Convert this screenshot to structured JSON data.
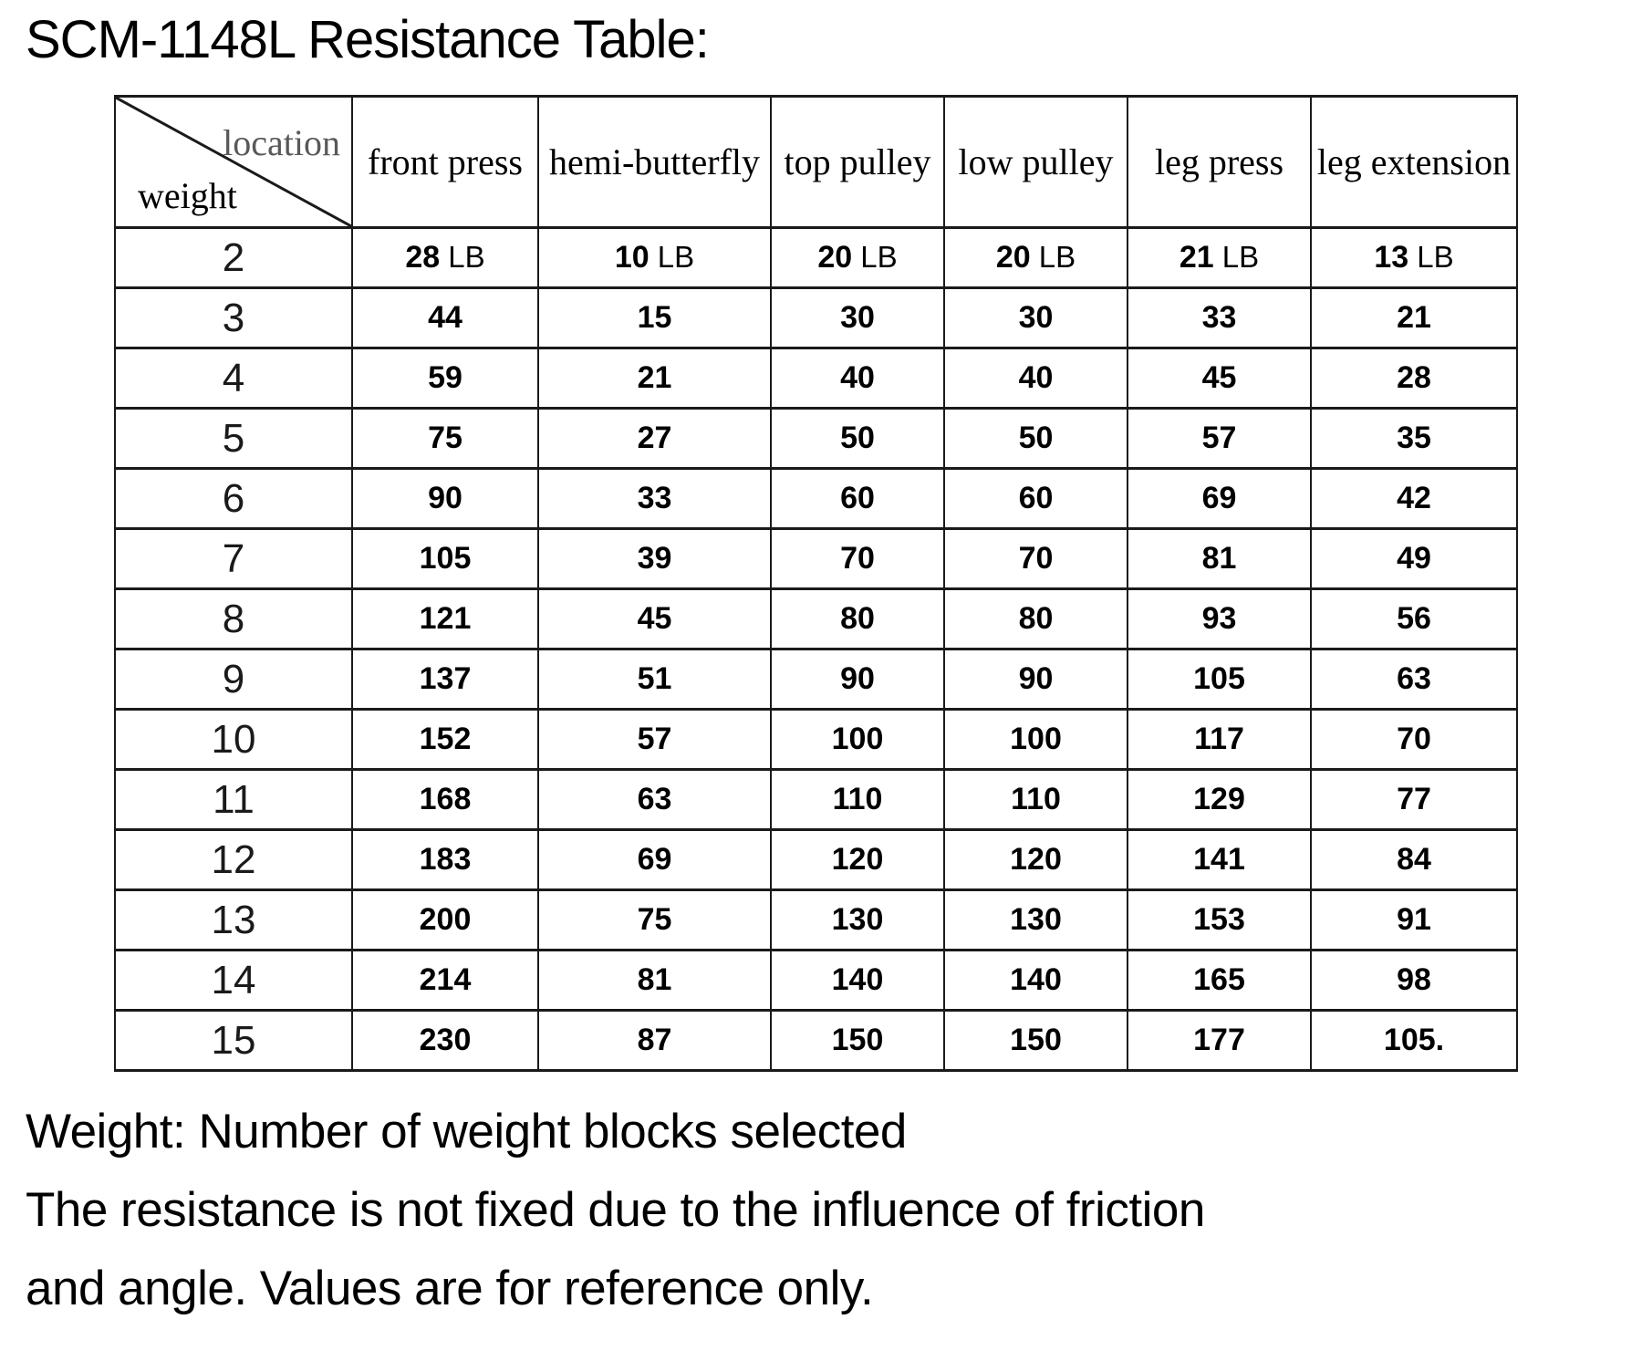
{
  "title": "SCM-1148L Resistance Table:",
  "table": {
    "corner": {
      "top_label": "location",
      "bottom_label": "weight"
    },
    "columns": [
      "front press",
      "hemi-butterfly",
      "top pulley",
      "low pulley",
      "leg press",
      "leg extension"
    ],
    "rows": [
      {
        "weight": "2",
        "unit": "LB",
        "values": [
          "28",
          "10",
          "20",
          "20",
          "21",
          "13"
        ]
      },
      {
        "weight": "3",
        "values": [
          "44",
          "15",
          "30",
          "30",
          "33",
          "21"
        ]
      },
      {
        "weight": "4",
        "values": [
          "59",
          "21",
          "40",
          "40",
          "45",
          "28"
        ]
      },
      {
        "weight": "5",
        "values": [
          "75",
          "27",
          "50",
          "50",
          "57",
          "35"
        ]
      },
      {
        "weight": "6",
        "values": [
          "90",
          "33",
          "60",
          "60",
          "69",
          "42"
        ]
      },
      {
        "weight": "7",
        "values": [
          "105",
          "39",
          "70",
          "70",
          "81",
          "49"
        ]
      },
      {
        "weight": "8",
        "values": [
          "121",
          "45",
          "80",
          "80",
          "93",
          "56"
        ]
      },
      {
        "weight": "9",
        "values": [
          "137",
          "51",
          "90",
          "90",
          "105",
          "63"
        ]
      },
      {
        "weight": "10",
        "values": [
          "152",
          "57",
          "100",
          "100",
          "117",
          "70"
        ]
      },
      {
        "weight": "11",
        "values": [
          "168",
          "63",
          "110",
          "110",
          "129",
          "77"
        ]
      },
      {
        "weight": "12",
        "values": [
          "183",
          "69",
          "120",
          "120",
          "141",
          "84"
        ]
      },
      {
        "weight": "13",
        "values": [
          "200",
          "75",
          "130",
          "130",
          "153",
          "91"
        ]
      },
      {
        "weight": "14",
        "values": [
          "214",
          "81",
          "140",
          "140",
          "165",
          "98"
        ]
      },
      {
        "weight": "15",
        "values": [
          "230",
          "87",
          "150",
          "150",
          "177",
          "105."
        ]
      }
    ]
  },
  "footer": {
    "line1": "Weight: Number of weight blocks selected",
    "line2": "The resistance is not fixed due to the influence of friction",
    "line3": "and angle. Values are for reference only."
  },
  "colors": {
    "text": "#000000",
    "border": "#1a1a1a",
    "location_label": "#595959"
  }
}
